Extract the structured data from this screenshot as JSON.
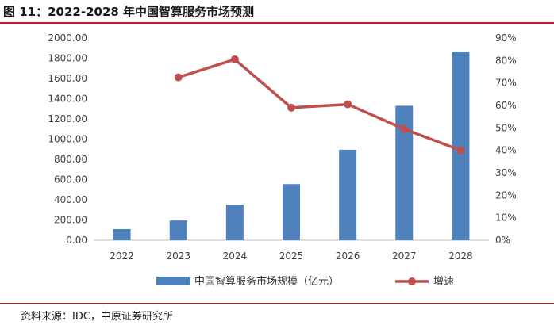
{
  "figure": {
    "title": "图 11：2022-2028 年中国智算服务市场预测",
    "source": "资料来源：IDC，中原证券研究所"
  },
  "chart_data": {
    "type": "bar",
    "categories": [
      "2022",
      "2023",
      "2024",
      "2025",
      "2026",
      "2027",
      "2028"
    ],
    "series": [
      {
        "name": "中国智算服务市场规模（亿元）",
        "type": "bar",
        "axis": "left",
        "color": "#4f81bd",
        "values": [
          110,
          195,
          350,
          555,
          895,
          1330,
          1865
        ]
      },
      {
        "name": "增速",
        "type": "line",
        "axis": "right",
        "color": "#c0504d",
        "values": [
          null,
          0.725,
          0.805,
          0.59,
          0.605,
          0.495,
          0.4
        ]
      }
    ],
    "y_left": {
      "min": 0,
      "max": 2000,
      "ticks": [
        "0.00",
        "200.00",
        "400.00",
        "600.00",
        "800.00",
        "1000.00",
        "1200.00",
        "1400.00",
        "1600.00",
        "1800.00",
        "2000.00"
      ]
    },
    "y_right": {
      "min": 0,
      "max": 0.9,
      "ticks": [
        "0%",
        "10%",
        "20%",
        "30%",
        "40%",
        "50%",
        "60%",
        "70%",
        "80%",
        "90%"
      ]
    },
    "grid": false,
    "legend_position": "bottom"
  }
}
